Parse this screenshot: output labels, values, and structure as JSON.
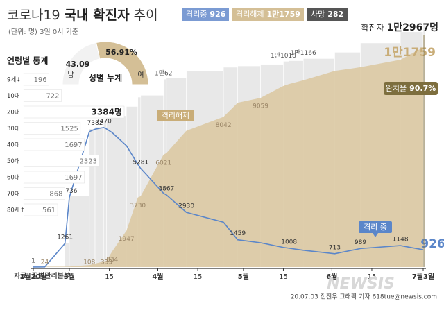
{
  "title": [
    "코로나19",
    "국내 확진자",
    "추이"
  ],
  "note": "(단위: 명) 3일 0시 기준",
  "badges": [
    {
      "label": "격리중",
      "value": "926",
      "color": "#7b9bd3"
    },
    {
      "label": "격리해제",
      "value": "1만1759",
      "color": "#d4bf96"
    },
    {
      "label": "사망",
      "value": "282",
      "color": "#555555"
    }
  ],
  "total_header": {
    "label": "확진자",
    "value": "1만2967명"
  },
  "recovery": {
    "label": "완치율",
    "value": "90.7%"
  },
  "ages": {
    "title": "연령별 통계",
    "categories": [
      "9세↓",
      "10대",
      "20대",
      "30대",
      "40대",
      "50대",
      "60대",
      "70대",
      "80세↑"
    ],
    "values": [
      196,
      722,
      3384,
      1525,
      1697,
      2323,
      1697,
      868,
      561
    ],
    "value_labels": [
      null,
      null,
      "3384명",
      null,
      null,
      null,
      null,
      null,
      null
    ]
  },
  "gender": {
    "title": "성별 누계",
    "categories": [
      "남",
      "여"
    ],
    "values": [
      43.09,
      56.91
    ],
    "value_labels": [
      null,
      "56.91%"
    ],
    "colors": [
      "#f2f2f2",
      "#d4bf96"
    ]
  },
  "chart_data": {
    "type": "line",
    "x": [
      0,
      13,
      36,
      41,
      48,
      50,
      53,
      54,
      56,
      61,
      65,
      66,
      74,
      75,
      82,
      95,
      100,
      108,
      116,
      118,
      123,
      134,
      143,
      157,
      165
    ],
    "xlim": [
      0,
      165
    ],
    "xticks": [
      {
        "value": 0,
        "label": "1월20일"
      },
      {
        "value": 41,
        "label": "3월"
      },
      {
        "value": 55,
        "label": "15"
      },
      {
        "value": 72,
        "label": "4월"
      },
      {
        "value": 86,
        "label": "15"
      },
      {
        "value": 102,
        "label": "5월"
      },
      {
        "value": 116,
        "label": "15"
      },
      {
        "value": 133,
        "label": "6월"
      },
      {
        "value": 147,
        "label": "15"
      },
      {
        "value": 165,
        "label": "7월3일"
      }
    ],
    "ylim": [
      0,
      13000
    ],
    "series": [
      {
        "name": "확진자",
        "type": "bar",
        "color": "#e8e8e8",
        "values": [
          1,
          31,
          1290,
          3800,
          7400,
          7500,
          7850,
          8000,
          8100,
          8600,
          9100,
          9200,
          10062,
          10150,
          10500,
          10700,
          10770,
          10850,
          11018,
          11050,
          11166,
          11500,
          12000,
          12600,
          12967
        ],
        "value_labels": [
          null,
          null,
          null,
          null,
          null,
          null,
          null,
          null,
          null,
          null,
          null,
          null,
          "1만62",
          null,
          null,
          null,
          null,
          null,
          "1만1018",
          null,
          "1만1166",
          null,
          null,
          null,
          null
        ]
      },
      {
        "name": "격리해제",
        "type": "area",
        "color": "#dcc9a3",
        "values": [
          0,
          24,
          24,
          30,
          108,
          180,
          300,
          333,
          834,
          1947,
          3730,
          3800,
          6021,
          6100,
          7300,
          8042,
          8800,
          9059,
          9700,
          9800,
          10000,
          10500,
          10700,
          11100,
          11759
        ],
        "value_labels": [
          null,
          "24",
          null,
          null,
          "108",
          null,
          null,
          "333",
          "834",
          "1947",
          "3730",
          null,
          "6021",
          null,
          null,
          "8042",
          null,
          "9059",
          null,
          null,
          null,
          null,
          null,
          null,
          "1만1759"
        ]
      },
      {
        "name": "격리 중",
        "type": "line",
        "color": "#5b86c9",
        "values": [
          1,
          7,
          1261,
          3736,
          7250,
          7382,
          7470,
          7400,
          7200,
          6500,
          5500,
          5281,
          3950,
          3867,
          2930,
          2400,
          1459,
          1300,
          1050,
          1008,
          900,
          713,
          989,
          1148,
          926
        ],
        "value_labels": [
          "1",
          null,
          "1261",
          "3736",
          null,
          "7382",
          "7470",
          null,
          null,
          null,
          null,
          "5281",
          null,
          "3867",
          "2930",
          null,
          "1459",
          null,
          null,
          "1008",
          null,
          "713",
          "989",
          "1148",
          "926"
        ]
      }
    ]
  },
  "source": "자료: 질병관리본부",
  "credit": "20.07.03 전진우 그래픽 기자 618tue@newsis.com",
  "watermark": "NEWSIS"
}
